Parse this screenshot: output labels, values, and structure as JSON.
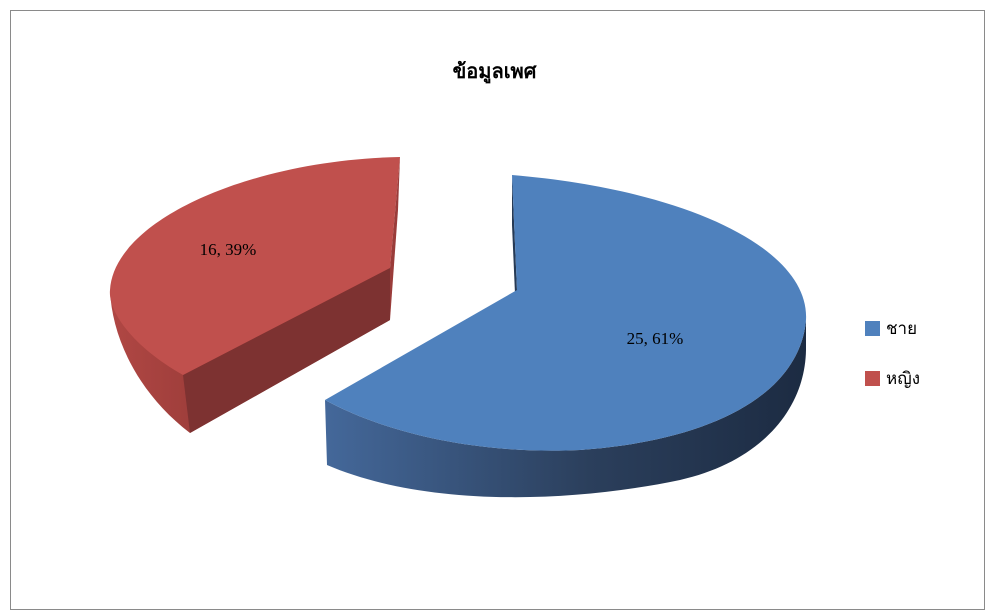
{
  "chart_data": {
    "type": "pie",
    "title": "ข้อมูลเพศ",
    "categories": [
      "ชาย",
      "หญิง"
    ],
    "values": [
      25,
      16
    ],
    "percentages": [
      61,
      39
    ],
    "data_labels": [
      "25, 61%",
      "16, 39%"
    ],
    "colors": [
      "#4f81bd",
      "#c0504d"
    ],
    "exploded": true,
    "style": "3d",
    "legend_position": "right"
  }
}
